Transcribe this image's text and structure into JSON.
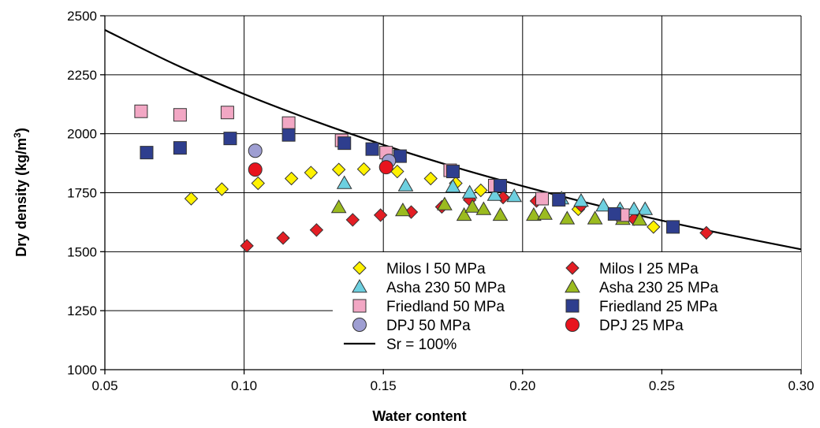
{
  "chart_data": {
    "type": "scatter",
    "xlabel": "Water content",
    "ylabel_main": "Dry density (kg/m",
    "ylabel_sup": "3",
    "ylabel_close": ")",
    "xlim": [
      0.05,
      0.3
    ],
    "ylim": [
      1000,
      2500
    ],
    "x_ticks": [
      0.05,
      0.1,
      0.15,
      0.2,
      0.25,
      0.3
    ],
    "x_tick_labels": [
      "0.05",
      "0.10",
      "0.15",
      "0.20",
      "0.25",
      "0.30"
    ],
    "y_ticks": [
      1000,
      1250,
      1500,
      1750,
      2000,
      2250,
      2500
    ],
    "y_tick_labels": [
      "1000",
      "1250",
      "1500",
      "1750",
      "2000",
      "2250",
      "2500"
    ],
    "grid": true,
    "legend_position": "bottom-right",
    "series": [
      {
        "name": "Milos I 50 MPa",
        "marker": "diamond",
        "color": "#FFF200",
        "points": [
          [
            0.081,
            1725
          ],
          [
            0.092,
            1765
          ],
          [
            0.105,
            1790
          ],
          [
            0.117,
            1810
          ],
          [
            0.124,
            1835
          ],
          [
            0.134,
            1848
          ],
          [
            0.143,
            1850
          ],
          [
            0.155,
            1840
          ],
          [
            0.167,
            1810
          ],
          [
            0.176,
            1790
          ],
          [
            0.185,
            1760
          ],
          [
            0.22,
            1680
          ],
          [
            0.247,
            1605
          ]
        ]
      },
      {
        "name": "Milos I 25 MPa",
        "marker": "diamond",
        "color": "#E31E24",
        "points": [
          [
            0.101,
            1525
          ],
          [
            0.114,
            1558
          ],
          [
            0.126,
            1592
          ],
          [
            0.139,
            1635
          ],
          [
            0.149,
            1655
          ],
          [
            0.16,
            1668
          ],
          [
            0.171,
            1690
          ],
          [
            0.181,
            1720
          ],
          [
            0.193,
            1730
          ],
          [
            0.205,
            1715
          ],
          [
            0.221,
            1695
          ],
          [
            0.24,
            1638
          ],
          [
            0.266,
            1580
          ]
        ]
      },
      {
        "name": "Asha 230 50 MPa",
        "marker": "triangle",
        "color": "#6DD0E0",
        "points": [
          [
            0.136,
            1790
          ],
          [
            0.158,
            1780
          ],
          [
            0.175,
            1775
          ],
          [
            0.181,
            1750
          ],
          [
            0.19,
            1740
          ],
          [
            0.197,
            1735
          ],
          [
            0.214,
            1725
          ],
          [
            0.221,
            1715
          ],
          [
            0.229,
            1695
          ],
          [
            0.235,
            1680
          ],
          [
            0.24,
            1680
          ],
          [
            0.244,
            1680
          ]
        ]
      },
      {
        "name": "Asha 230 25 MPa",
        "marker": "triangle",
        "color": "#9BBB1F",
        "points": [
          [
            0.134,
            1688
          ],
          [
            0.157,
            1675
          ],
          [
            0.172,
            1700
          ],
          [
            0.179,
            1655
          ],
          [
            0.182,
            1690
          ],
          [
            0.186,
            1680
          ],
          [
            0.192,
            1655
          ],
          [
            0.204,
            1655
          ],
          [
            0.208,
            1660
          ],
          [
            0.216,
            1640
          ],
          [
            0.226,
            1640
          ],
          [
            0.236,
            1638
          ],
          [
            0.242,
            1635
          ]
        ]
      },
      {
        "name": "Friedland 50 MPa",
        "marker": "square",
        "color": "#F2A7C4",
        "points": [
          [
            0.063,
            2095
          ],
          [
            0.077,
            2080
          ],
          [
            0.094,
            2090
          ],
          [
            0.116,
            2045
          ],
          [
            0.135,
            1972
          ],
          [
            0.151,
            1920
          ],
          [
            0.174,
            1845
          ],
          [
            0.19,
            1780
          ],
          [
            0.207,
            1725
          ],
          [
            0.236,
            1655
          ]
        ]
      },
      {
        "name": "Friedland 25 MPa",
        "marker": "square",
        "color": "#2E3E8E",
        "points": [
          [
            0.065,
            1920
          ],
          [
            0.077,
            1940
          ],
          [
            0.095,
            1980
          ],
          [
            0.116,
            1995
          ],
          [
            0.136,
            1960
          ],
          [
            0.146,
            1935
          ],
          [
            0.156,
            1905
          ],
          [
            0.175,
            1840
          ],
          [
            0.192,
            1780
          ],
          [
            0.213,
            1720
          ],
          [
            0.233,
            1660
          ],
          [
            0.254,
            1605
          ]
        ]
      },
      {
        "name": "DPJ 50 MPa",
        "marker": "circle",
        "color": "#9E9ED2",
        "points": [
          [
            0.104,
            1928
          ],
          [
            0.152,
            1885
          ]
        ]
      },
      {
        "name": "DPJ 25 MPa",
        "marker": "circle",
        "color": "#E8141E",
        "points": [
          [
            0.104,
            1848
          ],
          [
            0.151,
            1858
          ]
        ]
      },
      {
        "name": "Sr = 100%",
        "marker": "line",
        "color": "#000000",
        "points": [
          [
            0.05,
            2440
          ],
          [
            0.075,
            2295
          ],
          [
            0.1,
            2168
          ],
          [
            0.125,
            2055
          ],
          [
            0.15,
            1953
          ],
          [
            0.175,
            1861
          ],
          [
            0.2,
            1778
          ],
          [
            0.225,
            1702
          ],
          [
            0.25,
            1632
          ],
          [
            0.275,
            1569
          ],
          [
            0.3,
            1510
          ]
        ]
      }
    ],
    "legend_columns": [
      [
        "Milos I 50 MPa",
        "Asha 230 50 MPa",
        "Friedland 50 MPa",
        "DPJ 50 MPa",
        "Sr = 100%"
      ],
      [
        "Milos I 25 MPa",
        "Asha 230 25 MPa",
        "Friedland 25 MPa",
        "DPJ 25 MPa"
      ]
    ]
  }
}
